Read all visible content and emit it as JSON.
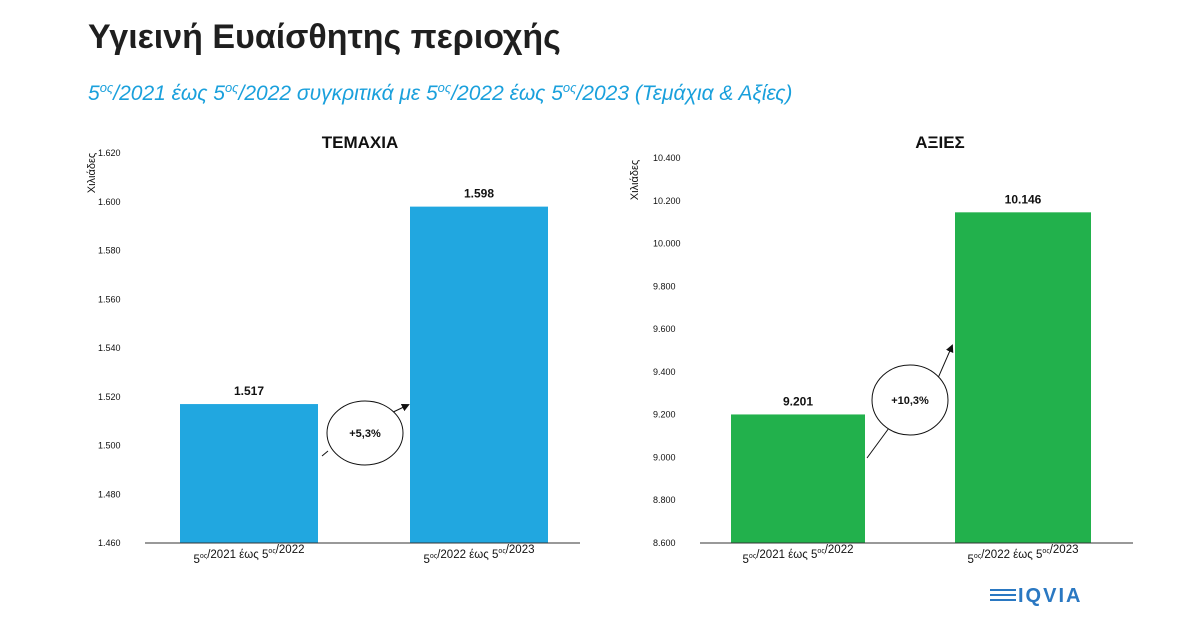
{
  "title": "Υγιεινή Ευαίσθητης περιοχής",
  "subtitle": {
    "p1": "5",
    "s1": "ος",
    "p2": "/2021 έως 5",
    "s2": "ος",
    "p3": "/2022 συγκριτικά με 5",
    "s3": "ος",
    "p4": "/2022 έως 5",
    "s4": "ος",
    "p5": "/2023 (Τεμάχια & Αξίες)"
  },
  "colors": {
    "units_bar": "#21a7e0",
    "values_bar": "#22b14c",
    "accent": "#1aa0dc",
    "logo": "#2a78c2"
  },
  "chart_data": [
    {
      "type": "bar",
      "title": "ΤΕΜΑΧΙΑ",
      "ylabel": "Χιλιάδες",
      "categories": [
        "5ος/2021 έως 5ος/2022",
        "5ος/2022 έως 5ος/2023"
      ],
      "values": [
        1517,
        1598
      ],
      "data_labels": [
        "1.517",
        "1.598"
      ],
      "ylim": [
        1460,
        1620
      ],
      "yticks": [
        1460,
        1480,
        1500,
        1520,
        1540,
        1560,
        1580,
        1600,
        1620
      ],
      "ytick_labels": [
        "1.460",
        "1.480",
        "1.500",
        "1.520",
        "1.540",
        "1.560",
        "1.580",
        "1.600",
        "1.620"
      ],
      "growth_label": "+5,3%",
      "color": "#21a7e0"
    },
    {
      "type": "bar",
      "title": "ΑΞΙΕΣ",
      "ylabel": "Χιλιάδες",
      "categories": [
        "5ος/2021 έως 5ος/2022",
        "5ος/2022 έως 5ος/2023"
      ],
      "values": [
        9201,
        10146
      ],
      "data_labels": [
        "9.201",
        "10.146"
      ],
      "ylim": [
        8600,
        10400
      ],
      "yticks": [
        8600,
        8800,
        9000,
        9200,
        9400,
        9600,
        9800,
        10000,
        10200,
        10400
      ],
      "ytick_labels": [
        "8.600",
        "8.800",
        "9.000",
        "9.200",
        "9.400",
        "9.600",
        "9.800",
        "10.000",
        "10.200",
        "10.400"
      ],
      "growth_label": "+10,3%",
      "color": "#22b14c"
    }
  ],
  "logo": {
    "text": "IQVIA"
  }
}
